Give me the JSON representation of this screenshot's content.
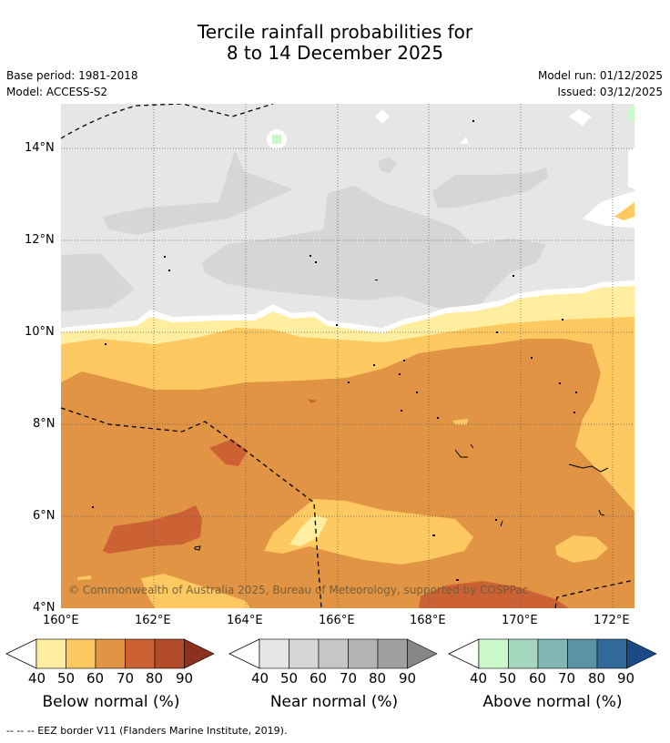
{
  "title": {
    "line1": "Tercile rainfall probabilities for",
    "line2": "8 to 14 December 2025"
  },
  "meta": {
    "base_period": "Base period: 1981-2018",
    "model": "Model: ACCESS-S2",
    "model_run": "Model run: 01/12/2025",
    "issued": "Issued: 03/12/2025"
  },
  "map": {
    "lat_labels": [
      "14°N",
      "12°N",
      "10°N",
      "8°N",
      "6°N",
      "4°N"
    ],
    "lon_labels": [
      "160°E",
      "162°E",
      "164°E",
      "166°E",
      "168°E",
      "170°E",
      "172°E"
    ],
    "copyright": "© Commonwealth of Australia 2025, Bureau of Meteorology, supported by COSPPac"
  },
  "legends": [
    {
      "title": "Below normal (%)",
      "ticks": [
        "40",
        "50",
        "60",
        "70",
        "80",
        "90"
      ],
      "colors": [
        "#ffeda0",
        "#fdc960",
        "#e09444",
        "#cc6233",
        "#b04a28",
        "#8c3020"
      ]
    },
    {
      "title": "Near normal (%)",
      "ticks": [
        "40",
        "50",
        "60",
        "70",
        "80",
        "90"
      ],
      "colors": [
        "#e6e6e6",
        "#d6d6d6",
        "#c6c6c6",
        "#b3b3b3",
        "#9f9f9f",
        "#868686"
      ]
    },
    {
      "title": "Above normal (%)",
      "ticks": [
        "40",
        "50",
        "60",
        "70",
        "80",
        "90"
      ],
      "colors": [
        "#cbf8cb",
        "#a5d7bf",
        "#80b7b2",
        "#5a94a4",
        "#336a9c",
        "#1a4b86"
      ]
    }
  ],
  "footer": "--  --  -- EEZ border V11 (Flanders Marine Institute, 2019)."
}
